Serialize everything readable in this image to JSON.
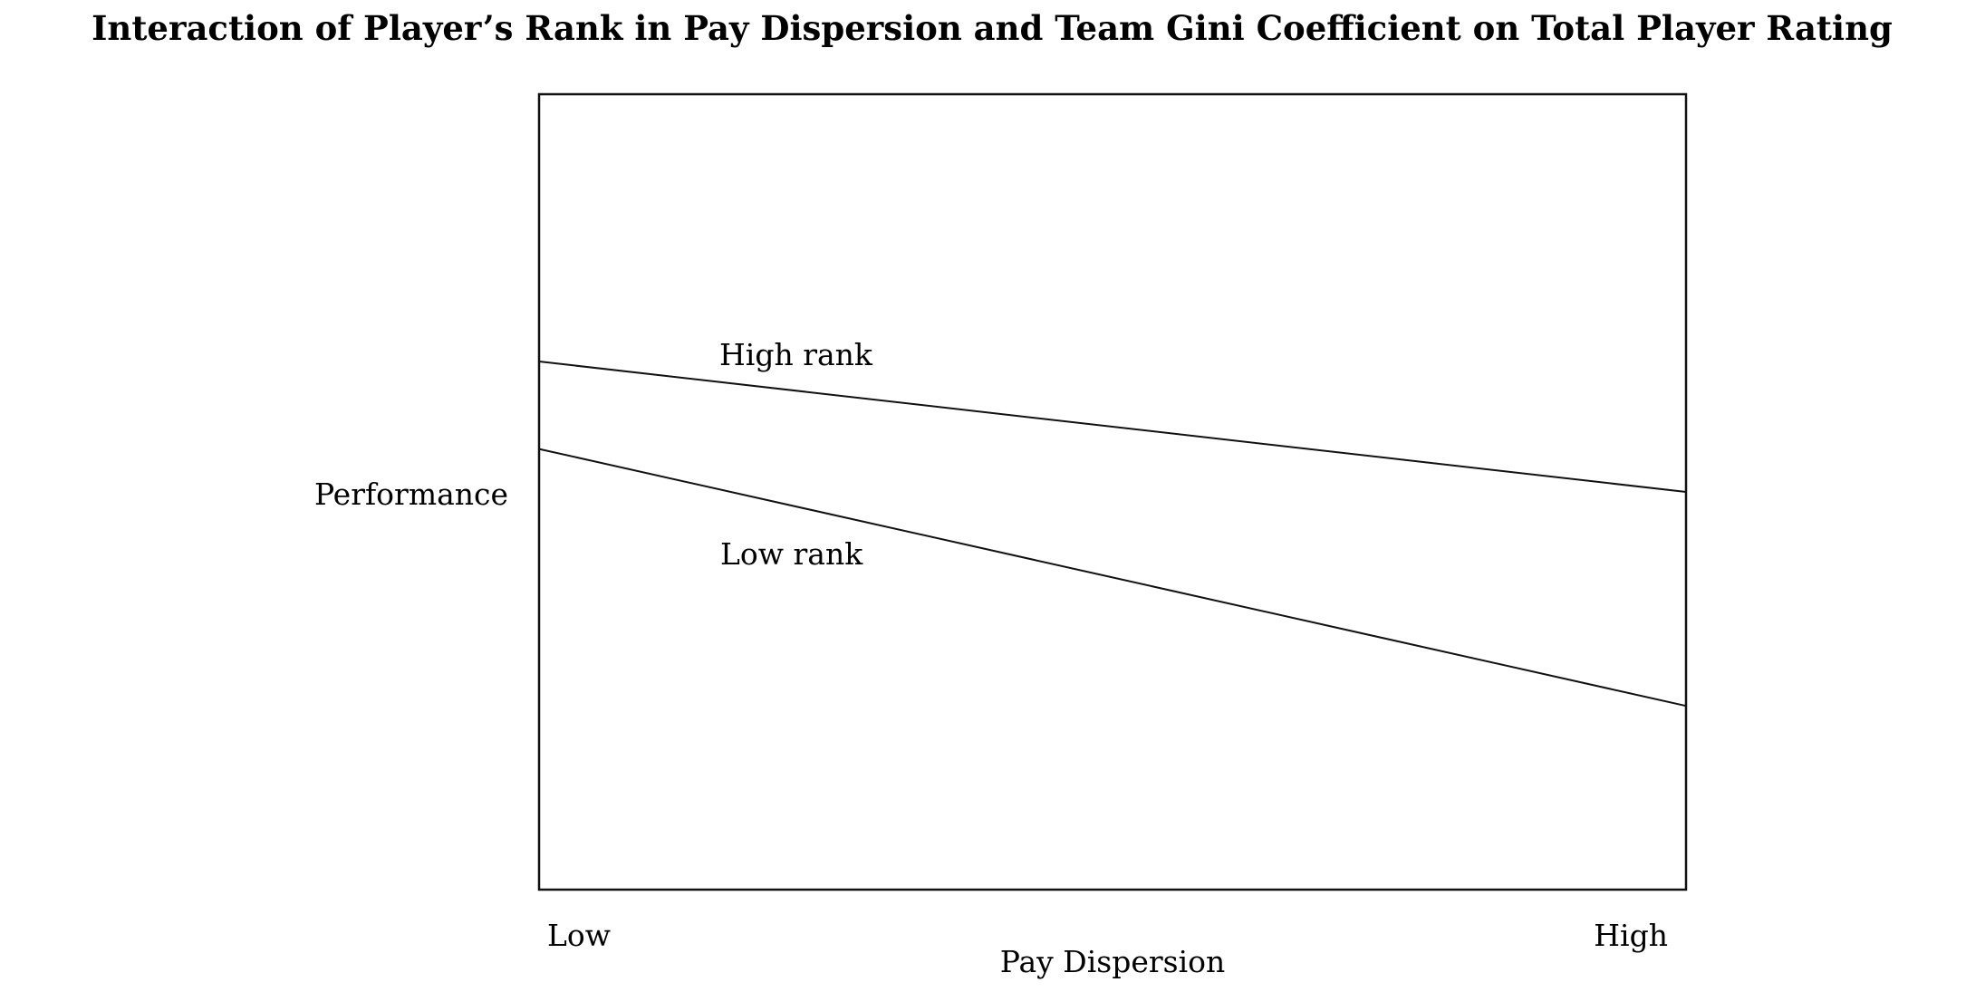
{
  "chart_data": {
    "type": "line",
    "title": "Interaction of Player’s Rank in Pay Dispersion and Team Gini Coefficient on Total Player Rating",
    "xlabel": "Pay Dispersion",
    "ylabel": "Performance",
    "categories": [
      "Low",
      "High"
    ],
    "ylim": [
      0,
      10
    ],
    "grid": false,
    "legend": "none",
    "series": [
      {
        "name": "High rank",
        "values": [
          6.64,
          5.0
        ]
      },
      {
        "name": "Low rank",
        "values": [
          5.54,
          2.31
        ]
      }
    ]
  }
}
